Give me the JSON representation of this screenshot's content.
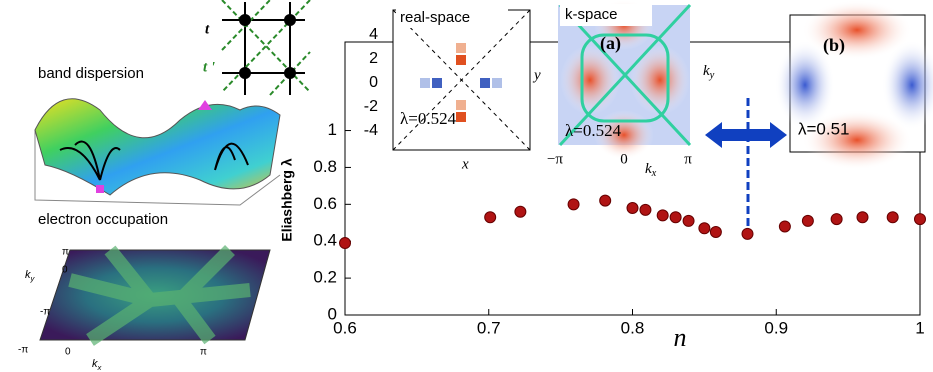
{
  "chart_data": {
    "type": "scatter",
    "ylabel": "Eliashberg λ",
    "xlabel": "n",
    "color": "#b01414",
    "x": [
      0.6,
      0.701,
      0.722,
      0.759,
      0.781,
      0.8,
      0.809,
      0.821,
      0.83,
      0.839,
      0.85,
      0.858,
      0.88,
      0.906,
      0.922,
      0.942,
      0.96,
      0.981,
      1.0
    ],
    "values": [
      0.39,
      0.53,
      0.56,
      0.6,
      0.62,
      0.58,
      0.57,
      0.54,
      0.53,
      0.51,
      0.47,
      0.45,
      0.44,
      0.48,
      0.51,
      0.52,
      0.53,
      0.53,
      0.52
    ],
    "xlim": [
      0.6,
      1.0
    ],
    "ylim": [
      0,
      1.48
    ],
    "xticks": [
      0.6,
      0.7,
      0.8,
      0.9,
      1
    ],
    "yticks": [
      0,
      0.2,
      0.4,
      0.6,
      0.8,
      1
    ]
  },
  "insets": {
    "lattice": {
      "t": "t",
      "t_prime": "t '"
    },
    "band_dispersion": "band dispersion",
    "electron_occupation": {
      "title": "electron occupation",
      "ticks": [
        "π",
        "0",
        "-π",
        "-π",
        "0",
        "π"
      ],
      "kx": [
        "k",
        "x"
      ],
      "ky": [
        "k",
        "y"
      ]
    },
    "real_space": {
      "title": "real-space",
      "ticks": [
        "4",
        "2",
        "0",
        "-2",
        "-4"
      ],
      "x": "x",
      "y": "y",
      "lambda": "λ=0.524"
    },
    "k_space": {
      "title": "k-space",
      "label": "(a)",
      "lambda": "λ=0.524",
      "ticks": [
        "−π",
        "0",
        "π"
      ],
      "kx": [
        "k",
        "x"
      ],
      "ky": [
        "k",
        "y"
      ]
    },
    "panel_b": {
      "label": "(b)",
      "lambda": "λ=0.51"
    }
  }
}
